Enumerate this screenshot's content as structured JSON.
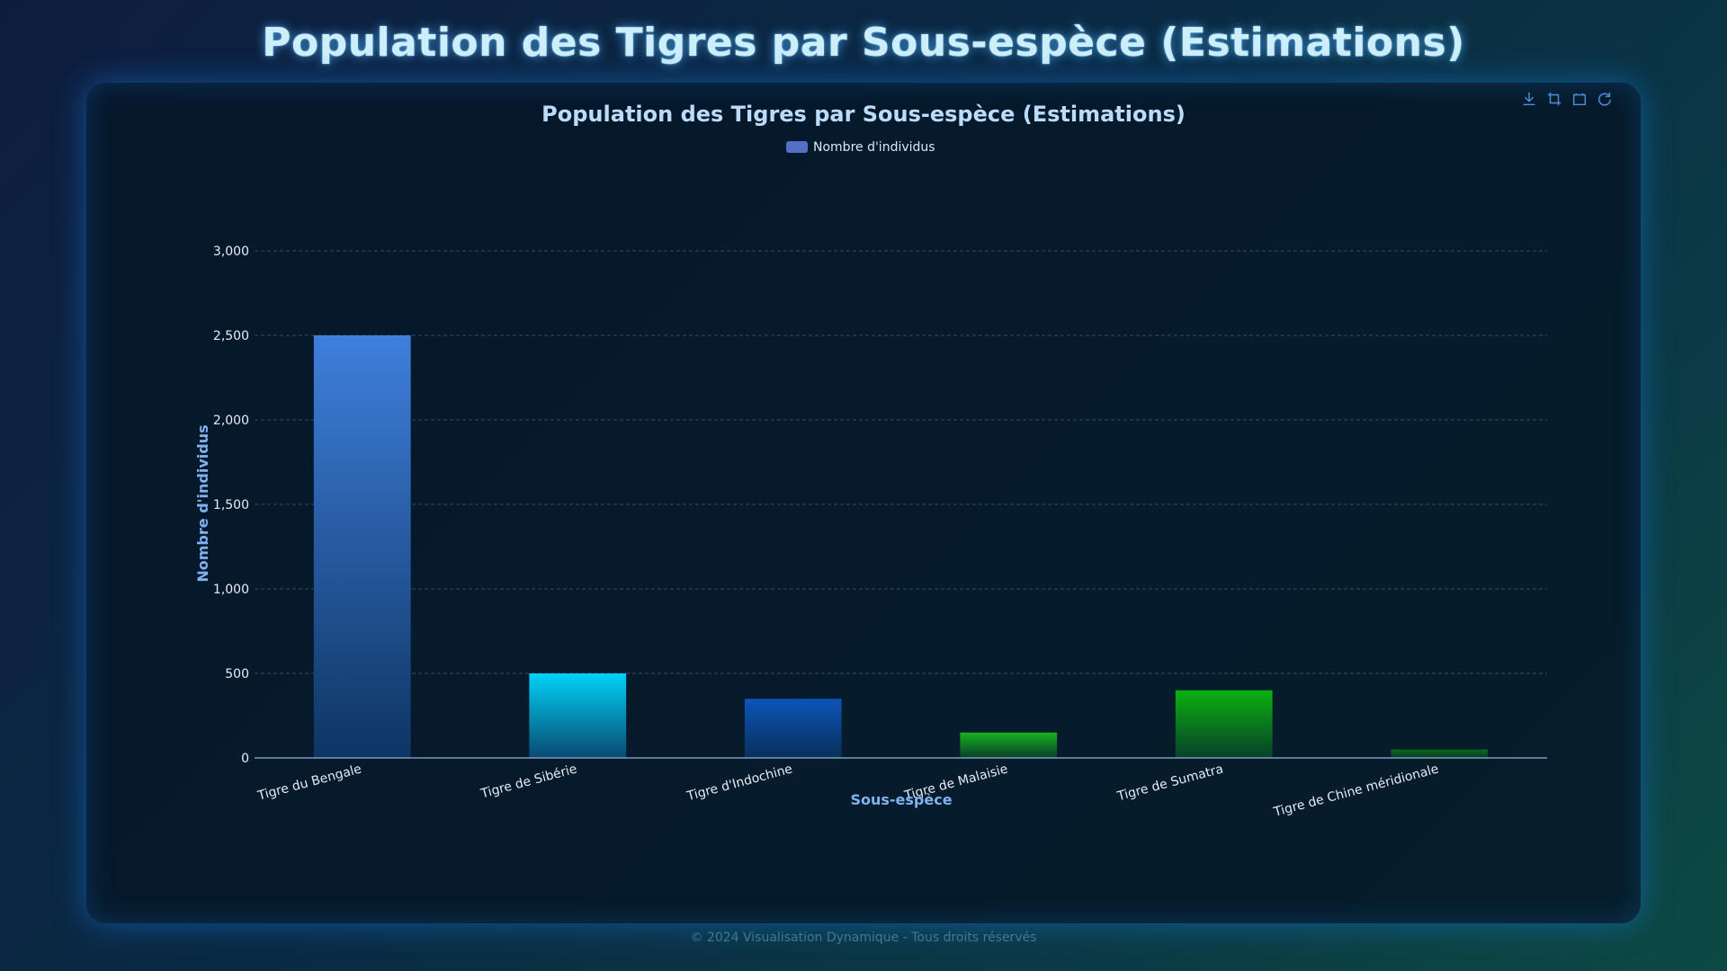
{
  "header": {
    "title": "Population des Tigres par Sous-espèce (Estimations)"
  },
  "toolbox": {
    "icons": [
      "download-icon",
      "crop-icon",
      "restore-icon",
      "refresh-icon"
    ],
    "color": "#4a8fd8"
  },
  "footer": {
    "text": "© 2024 Visualisation Dynamique - Tous droits réservés"
  },
  "chart_data": {
    "type": "bar",
    "title": "Population des Tigres par Sous-espèce (Estimations)",
    "xlabel": "Sous-espèce",
    "ylabel": "Nombre d'individus",
    "ylim": [
      0,
      3000
    ],
    "yticks": [
      0,
      500,
      1000,
      1500,
      2000,
      2500,
      3000
    ],
    "ytick_labels": [
      "0",
      "500",
      "1,000",
      "1,500",
      "2,000",
      "2,500",
      "3,000"
    ],
    "grid": true,
    "legend": {
      "position": "top-center",
      "entries": [
        "Nombre d'individus"
      ],
      "color": "#5470c6"
    },
    "categories": [
      "Tigre du Bengale",
      "Tigre de Sibérie",
      "Tigre d'Indochine",
      "Tigre de Malaisie",
      "Tigre de Sumatra",
      "Tigre de Chine méridionale"
    ],
    "series": [
      {
        "name": "Nombre d'individus",
        "values": [
          2500,
          500,
          350,
          150,
          400,
          50
        ]
      }
    ],
    "bar_colors": [
      [
        "#3f7fdc",
        "#0e3563"
      ],
      [
        "#00d2f5",
        "#0a4a72"
      ],
      [
        "#0b55b8",
        "#0a2f5a"
      ],
      [
        "#17b31d",
        "#0a3d2b"
      ],
      [
        "#0ab10f",
        "#08402a"
      ],
      [
        "#0b6b1c",
        "#0a3a26"
      ]
    ]
  }
}
